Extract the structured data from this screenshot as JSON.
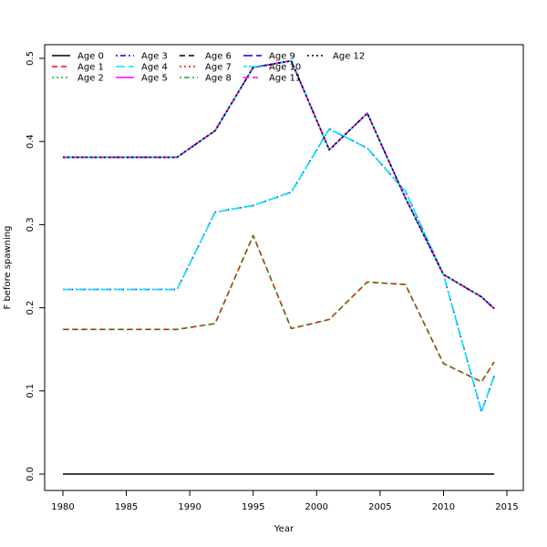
{
  "chart_data": {
    "type": "line",
    "xlabel": "Year",
    "ylabel": "F before spawning",
    "xlim": [
      1980,
      2015
    ],
    "ylim": [
      0.0,
      0.5
    ],
    "x_ticks": [
      "1980",
      "1985",
      "1990",
      "1995",
      "2000",
      "2005",
      "2010",
      "2015"
    ],
    "y_ticks": [
      "0.0",
      "0.1",
      "0.2",
      "0.3",
      "0.4",
      "0.5"
    ],
    "grid": false,
    "legend_position": "top-left",
    "series": [
      {
        "name": "Age 0",
        "color": "#000000",
        "dash": "solid",
        "x": [
          1980,
          2014
        ],
        "y": [
          0.0,
          0.0
        ]
      },
      {
        "name": "Age 1",
        "color": "#ff0000",
        "dash": "dashed",
        "x": [
          1980,
          1989,
          1992,
          1995,
          1998,
          2001,
          2004,
          2007,
          2010,
          2013,
          2014
        ],
        "y": [
          0.174,
          0.174,
          0.181,
          0.287,
          0.175,
          0.186,
          0.231,
          0.228,
          0.133,
          0.111,
          0.135
        ]
      },
      {
        "name": "Age 2",
        "color": "#22aa22",
        "dash": "dotted",
        "x": [
          1980,
          1989,
          1992,
          1995,
          1998,
          2001,
          2004,
          2007,
          2010,
          2013,
          2014
        ],
        "y": [
          0.174,
          0.174,
          0.181,
          0.287,
          0.175,
          0.186,
          0.231,
          0.228,
          0.133,
          0.111,
          0.135
        ]
      },
      {
        "name": "Age 3",
        "color": "#0000ff",
        "dash": "dotdash",
        "x": [
          1980,
          1989,
          1992,
          1995,
          1998,
          2001,
          2004,
          2007,
          2010,
          2013,
          2014
        ],
        "y": [
          0.222,
          0.222,
          0.315,
          0.323,
          0.339,
          0.415,
          0.392,
          0.34,
          0.24,
          0.075,
          0.118
        ]
      },
      {
        "name": "Age 4",
        "color": "#00e5ff",
        "dash": "longdash",
        "x": [
          1980,
          1989,
          1992,
          1995,
          1998,
          2001,
          2004,
          2007,
          2010,
          2013,
          2014
        ],
        "y": [
          0.222,
          0.222,
          0.315,
          0.323,
          0.339,
          0.415,
          0.392,
          0.34,
          0.24,
          0.075,
          0.118
        ]
      },
      {
        "name": "Age 5",
        "color": "#ff00ff",
        "dash": "solid",
        "x": [
          1980,
          1989,
          1992,
          1995,
          1998,
          2001,
          2004,
          2007,
          2010,
          2013,
          2014
        ],
        "y": [
          0.381,
          0.381,
          0.413,
          0.489,
          0.497,
          0.39,
          0.434,
          0.332,
          0.24,
          0.213,
          0.199
        ]
      },
      {
        "name": "Age 6",
        "color": "#000000",
        "dash": "dashed",
        "x": [
          1980,
          1989,
          1992,
          1995,
          1998,
          2001,
          2004,
          2007,
          2010,
          2013,
          2014
        ],
        "y": [
          0.381,
          0.381,
          0.413,
          0.489,
          0.497,
          0.39,
          0.434,
          0.332,
          0.24,
          0.213,
          0.199
        ]
      },
      {
        "name": "Age 7",
        "color": "#ff0000",
        "dash": "dotted",
        "x": [
          1980,
          1989,
          1992,
          1995,
          1998,
          2001,
          2004,
          2007,
          2010,
          2013,
          2014
        ],
        "y": [
          0.381,
          0.381,
          0.413,
          0.489,
          0.497,
          0.39,
          0.434,
          0.332,
          0.24,
          0.213,
          0.199
        ]
      },
      {
        "name": "Age 8",
        "color": "#22aa22",
        "dash": "dotdash",
        "x": [
          1980,
          1989,
          1992,
          1995,
          1998,
          2001,
          2004,
          2007,
          2010,
          2013,
          2014
        ],
        "y": [
          0.381,
          0.381,
          0.413,
          0.489,
          0.497,
          0.39,
          0.434,
          0.332,
          0.24,
          0.213,
          0.199
        ]
      },
      {
        "name": "Age 9",
        "color": "#0000ff",
        "dash": "longdash",
        "x": [
          1980,
          1989,
          1992,
          1995,
          1998,
          2001,
          2004,
          2007,
          2010,
          2013,
          2014
        ],
        "y": [
          0.381,
          0.381,
          0.413,
          0.489,
          0.497,
          0.39,
          0.434,
          0.332,
          0.24,
          0.213,
          0.199
        ]
      },
      {
        "name": "Age 10",
        "color": "#00e5ff",
        "dash": "twodash",
        "x": [
          1980,
          1989,
          1992,
          1995,
          1998,
          2001,
          2004,
          2007,
          2010,
          2013,
          2014
        ],
        "y": [
          0.381,
          0.381,
          0.413,
          0.489,
          0.497,
          0.39,
          0.434,
          0.332,
          0.24,
          0.213,
          0.199
        ]
      },
      {
        "name": "Age 11",
        "color": "#ff00ff",
        "dash": "dashed",
        "x": [
          1980,
          1989,
          1992,
          1995,
          1998,
          2001,
          2004,
          2007,
          2010,
          2013,
          2014
        ],
        "y": [
          0.381,
          0.381,
          0.413,
          0.489,
          0.497,
          0.39,
          0.434,
          0.332,
          0.24,
          0.213,
          0.199
        ]
      },
      {
        "name": "Age 12",
        "color": "#000000",
        "dash": "dotted",
        "x": [
          1980,
          1989,
          1992,
          1995,
          1998,
          2001,
          2004,
          2007,
          2010,
          2013,
          2014
        ],
        "y": [
          0.381,
          0.381,
          0.413,
          0.489,
          0.497,
          0.39,
          0.434,
          0.332,
          0.24,
          0.213,
          0.199
        ]
      }
    ]
  }
}
